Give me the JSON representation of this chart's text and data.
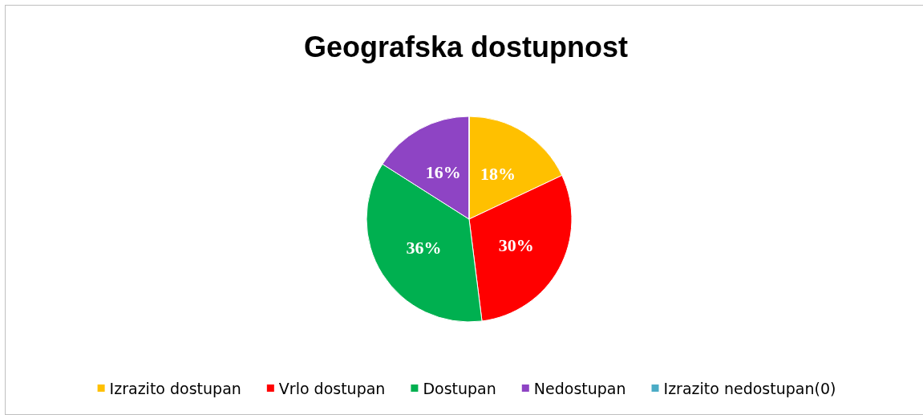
{
  "chart_data": {
    "type": "pie",
    "title": "Geografska dostupnost",
    "categories": [
      "Izrazito dostupan",
      "Vrlo dostupan",
      "Dostupan",
      "Nedostupan",
      "Izrazito nedostupan(0)"
    ],
    "values": [
      18,
      30,
      36,
      16,
      0
    ],
    "colors": [
      "#ffc000",
      "#ff0000",
      "#00b050",
      "#8e44c4",
      "#4bacc6"
    ],
    "value_labels": [
      "18%",
      "30%",
      "36%",
      "16%",
      null
    ],
    "legend": "bottom"
  }
}
